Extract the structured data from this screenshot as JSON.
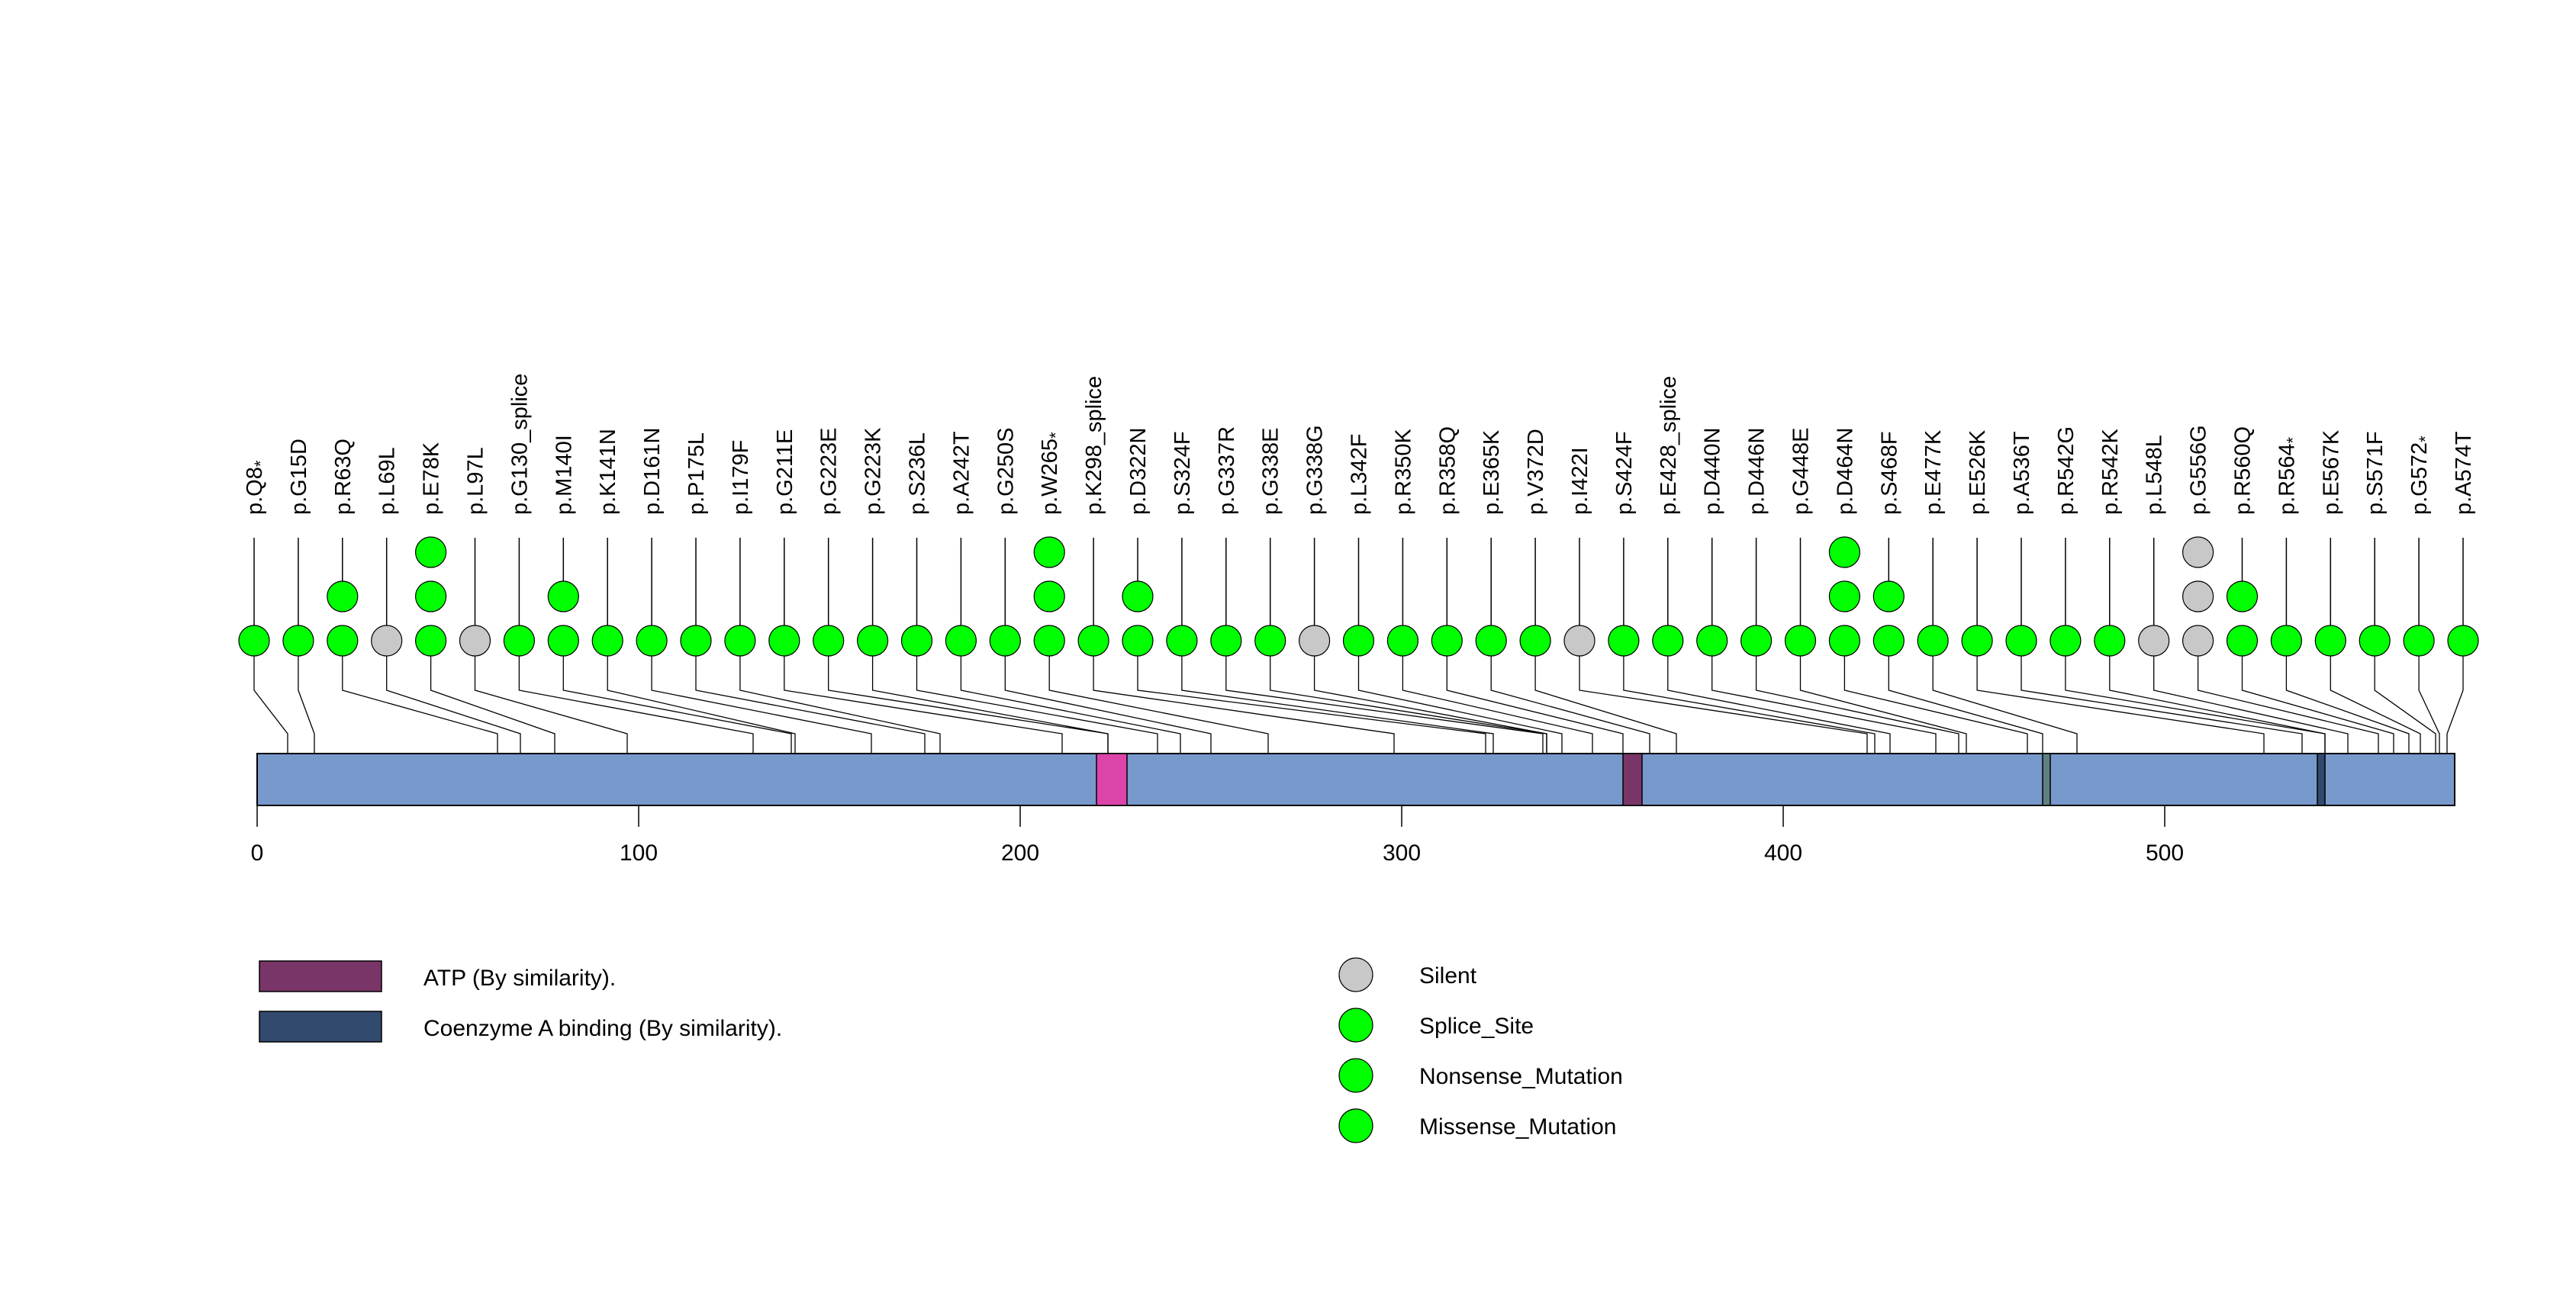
{
  "chart_data": {
    "type": "lollipop",
    "title": "",
    "xlabel": "",
    "ylabel": "",
    "protein_length": 576,
    "xlim": [
      0,
      576
    ],
    "x_ticks": [
      0,
      100,
      200,
      300,
      400,
      500
    ],
    "x_tick_labels": [
      "0",
      "100",
      "200",
      "300",
      "400",
      "500"
    ],
    "colors": {
      "protein_bar": "#7799CC",
      "Silent": "#C8C8C8",
      "Splice_Site": "#00FF00",
      "Nonsense_Mutation": "#00FF00",
      "Missense_Mutation": "#00FF00",
      "outline": "#000000"
    },
    "domains": [
      {
        "name": "unlabeled-region-pink",
        "start": 220,
        "end": 228,
        "color": "#DD44AA"
      },
      {
        "name": "ATP (By similarity).",
        "start": 358,
        "end": 363,
        "color": "#7A3568"
      },
      {
        "name": "unlabeled-region-teal",
        "start": 468,
        "end": 470,
        "color": "#5E8080"
      },
      {
        "name": "Coenzyme A binding (By similarity).",
        "start": 540,
        "end": 542,
        "color": "#324A6E"
      }
    ],
    "mutations": [
      {
        "label": "p.Q8*",
        "position": 8,
        "types": [
          "Nonsense_Mutation"
        ]
      },
      {
        "label": "p.G15D",
        "position": 15,
        "types": [
          "Missense_Mutation"
        ]
      },
      {
        "label": "p.R63Q",
        "position": 63,
        "types": [
          "Missense_Mutation",
          "Missense_Mutation"
        ]
      },
      {
        "label": "p.L69L",
        "position": 69,
        "types": [
          "Silent"
        ]
      },
      {
        "label": "p.E78K",
        "position": 78,
        "types": [
          "Missense_Mutation",
          "Missense_Mutation",
          "Missense_Mutation"
        ]
      },
      {
        "label": "p.L97L",
        "position": 97,
        "types": [
          "Silent"
        ]
      },
      {
        "label": "p.G130_splice",
        "position": 130,
        "types": [
          "Splice_Site"
        ]
      },
      {
        "label": "p.M140I",
        "position": 140,
        "types": [
          "Missense_Mutation",
          "Missense_Mutation"
        ]
      },
      {
        "label": "p.K141N",
        "position": 141,
        "types": [
          "Missense_Mutation"
        ]
      },
      {
        "label": "p.D161N",
        "position": 161,
        "types": [
          "Missense_Mutation"
        ]
      },
      {
        "label": "p.P175L",
        "position": 175,
        "types": [
          "Missense_Mutation"
        ]
      },
      {
        "label": "p.I179F",
        "position": 179,
        "types": [
          "Missense_Mutation"
        ]
      },
      {
        "label": "p.G211E",
        "position": 211,
        "types": [
          "Missense_Mutation"
        ]
      },
      {
        "label": "p.G223E",
        "position": 223,
        "types": [
          "Missense_Mutation"
        ]
      },
      {
        "label": "p.G223K",
        "position": 223,
        "types": [
          "Missense_Mutation"
        ]
      },
      {
        "label": "p.S236L",
        "position": 236,
        "types": [
          "Missense_Mutation"
        ]
      },
      {
        "label": "p.A242T",
        "position": 242,
        "types": [
          "Missense_Mutation"
        ]
      },
      {
        "label": "p.G250S",
        "position": 250,
        "types": [
          "Missense_Mutation"
        ]
      },
      {
        "label": "p.W265*",
        "position": 265,
        "types": [
          "Nonsense_Mutation",
          "Nonsense_Mutation",
          "Nonsense_Mutation"
        ]
      },
      {
        "label": "p.K298_splice",
        "position": 298,
        "types": [
          "Splice_Site"
        ]
      },
      {
        "label": "p.D322N",
        "position": 322,
        "types": [
          "Missense_Mutation",
          "Missense_Mutation"
        ]
      },
      {
        "label": "p.S324F",
        "position": 324,
        "types": [
          "Missense_Mutation"
        ]
      },
      {
        "label": "p.G337R",
        "position": 337,
        "types": [
          "Missense_Mutation"
        ]
      },
      {
        "label": "p.G338E",
        "position": 338,
        "types": [
          "Missense_Mutation"
        ]
      },
      {
        "label": "p.G338G",
        "position": 338,
        "types": [
          "Silent"
        ]
      },
      {
        "label": "p.L342F",
        "position": 342,
        "types": [
          "Missense_Mutation"
        ]
      },
      {
        "label": "p.R350K",
        "position": 350,
        "types": [
          "Missense_Mutation"
        ]
      },
      {
        "label": "p.R358Q",
        "position": 358,
        "types": [
          "Missense_Mutation"
        ]
      },
      {
        "label": "p.E365K",
        "position": 365,
        "types": [
          "Missense_Mutation"
        ]
      },
      {
        "label": "p.V372D",
        "position": 372,
        "types": [
          "Missense_Mutation"
        ]
      },
      {
        "label": "p.I422I",
        "position": 422,
        "types": [
          "Silent"
        ]
      },
      {
        "label": "p.S424F",
        "position": 424,
        "types": [
          "Missense_Mutation"
        ]
      },
      {
        "label": "p.E428_splice",
        "position": 428,
        "types": [
          "Splice_Site"
        ]
      },
      {
        "label": "p.D440N",
        "position": 440,
        "types": [
          "Missense_Mutation"
        ]
      },
      {
        "label": "p.D446N",
        "position": 446,
        "types": [
          "Missense_Mutation"
        ]
      },
      {
        "label": "p.G448E",
        "position": 448,
        "types": [
          "Missense_Mutation"
        ]
      },
      {
        "label": "p.D464N",
        "position": 464,
        "types": [
          "Missense_Mutation",
          "Missense_Mutation",
          "Missense_Mutation"
        ]
      },
      {
        "label": "p.S468F",
        "position": 468,
        "types": [
          "Missense_Mutation",
          "Missense_Mutation"
        ]
      },
      {
        "label": "p.E477K",
        "position": 477,
        "types": [
          "Missense_Mutation"
        ]
      },
      {
        "label": "p.E526K",
        "position": 526,
        "types": [
          "Missense_Mutation"
        ]
      },
      {
        "label": "p.A536T",
        "position": 536,
        "types": [
          "Missense_Mutation"
        ]
      },
      {
        "label": "p.R542G",
        "position": 542,
        "types": [
          "Missense_Mutation"
        ]
      },
      {
        "label": "p.R542K",
        "position": 542,
        "types": [
          "Missense_Mutation"
        ]
      },
      {
        "label": "p.L548L",
        "position": 548,
        "types": [
          "Silent"
        ]
      },
      {
        "label": "p.G556G",
        "position": 556,
        "types": [
          "Silent",
          "Silent",
          "Silent"
        ]
      },
      {
        "label": "p.R560Q",
        "position": 560,
        "types": [
          "Missense_Mutation",
          "Missense_Mutation"
        ]
      },
      {
        "label": "p.R564*",
        "position": 564,
        "types": [
          "Nonsense_Mutation"
        ]
      },
      {
        "label": "p.E567K",
        "position": 567,
        "types": [
          "Missense_Mutation"
        ]
      },
      {
        "label": "p.S571F",
        "position": 571,
        "types": [
          "Missense_Mutation"
        ]
      },
      {
        "label": "p.G572*",
        "position": 572,
        "types": [
          "Nonsense_Mutation"
        ]
      },
      {
        "label": "p.A574T",
        "position": 574,
        "types": [
          "Missense_Mutation"
        ]
      }
    ],
    "domain_legend": [
      {
        "label": "ATP (By similarity).",
        "color": "#7A3568"
      },
      {
        "label": "Coenzyme A binding (By similarity).",
        "color": "#324A6E"
      }
    ],
    "mutation_legend": [
      {
        "label": "Silent",
        "color": "#C8C8C8"
      },
      {
        "label": "Splice_Site",
        "color": "#00FF00"
      },
      {
        "label": "Nonsense_Mutation",
        "color": "#00FF00"
      },
      {
        "label": "Missense_Mutation",
        "color": "#00FF00"
      }
    ],
    "legend_placement": "bottom"
  }
}
